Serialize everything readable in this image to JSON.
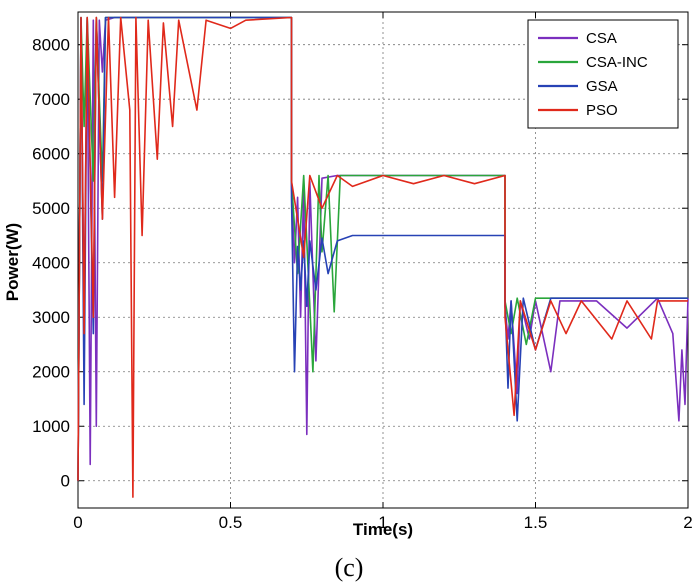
{
  "chart_data": {
    "type": "line",
    "title": "",
    "xlabel": "Time(s)",
    "ylabel": "Power(W)",
    "xlim": [
      0,
      2
    ],
    "ylim": [
      -500,
      8600
    ],
    "grid": true,
    "legend_position": "top-right",
    "x_ticks": [
      "0",
      "0.5",
      "1",
      "1.5",
      "2"
    ],
    "x_tick_values": [
      0,
      0.5,
      1,
      1.5,
      2
    ],
    "y_ticks": [
      "0",
      "1000",
      "2000",
      "3000",
      "4000",
      "5000",
      "6000",
      "7000",
      "8000"
    ],
    "y_tick_values": [
      0,
      1000,
      2000,
      3000,
      4000,
      5000,
      6000,
      7000,
      8000
    ],
    "series": [
      {
        "name": "CSA",
        "color": "#7b2fbe",
        "points": [
          [
            0,
            0
          ],
          [
            0.01,
            8400
          ],
          [
            0.02,
            3000
          ],
          [
            0.03,
            8450
          ],
          [
            0.04,
            300
          ],
          [
            0.05,
            8450
          ],
          [
            0.06,
            1000
          ],
          [
            0.07,
            8450
          ],
          [
            0.08,
            7500
          ],
          [
            0.09,
            8450
          ],
          [
            0.12,
            8500
          ],
          [
            0.7,
            8500
          ],
          [
            0.7,
            5400
          ],
          [
            0.71,
            4000
          ],
          [
            0.72,
            5200
          ],
          [
            0.73,
            3000
          ],
          [
            0.74,
            5400
          ],
          [
            0.75,
            850
          ],
          [
            0.76,
            5500
          ],
          [
            0.78,
            2200
          ],
          [
            0.8,
            5550
          ],
          [
            0.85,
            5600
          ],
          [
            1.4,
            5600
          ],
          [
            1.4,
            3200
          ],
          [
            1.41,
            2600
          ],
          [
            1.42,
            3300
          ],
          [
            1.44,
            1600
          ],
          [
            1.45,
            3300
          ],
          [
            1.48,
            2600
          ],
          [
            1.5,
            3300
          ],
          [
            1.55,
            2000
          ],
          [
            1.58,
            3300
          ],
          [
            1.7,
            3300
          ],
          [
            1.8,
            2800
          ],
          [
            1.9,
            3350
          ],
          [
            1.95,
            2700
          ],
          [
            1.97,
            1100
          ],
          [
            1.98,
            2400
          ],
          [
            1.99,
            1400
          ],
          [
            2,
            3350
          ]
        ]
      },
      {
        "name": "CSA-INC",
        "color": "#2aa63b",
        "points": [
          [
            0,
            0
          ],
          [
            0.01,
            8500
          ],
          [
            0.02,
            6500
          ],
          [
            0.03,
            8500
          ],
          [
            0.05,
            5500
          ],
          [
            0.06,
            8500
          ],
          [
            0.08,
            5500
          ],
          [
            0.09,
            8500
          ],
          [
            0.7,
            8500
          ],
          [
            0.7,
            5500
          ],
          [
            0.72,
            3800
          ],
          [
            0.74,
            5600
          ],
          [
            0.77,
            2000
          ],
          [
            0.79,
            5600
          ],
          [
            0.8,
            4200
          ],
          [
            0.82,
            5600
          ],
          [
            0.84,
            3100
          ],
          [
            0.86,
            5600
          ],
          [
            1.4,
            5600
          ],
          [
            1.4,
            3300
          ],
          [
            1.42,
            2700
          ],
          [
            1.44,
            3350
          ],
          [
            1.47,
            2500
          ],
          [
            1.5,
            3350
          ],
          [
            2,
            3350
          ]
        ]
      },
      {
        "name": "GSA",
        "color": "#2742b5",
        "points": [
          [
            0,
            0
          ],
          [
            0.01,
            8500
          ],
          [
            0.02,
            1400
          ],
          [
            0.03,
            8500
          ],
          [
            0.05,
            2700
          ],
          [
            0.06,
            8500
          ],
          [
            0.08,
            4800
          ],
          [
            0.09,
            8500
          ],
          [
            0.7,
            8500
          ],
          [
            0.7,
            5200
          ],
          [
            0.71,
            2000
          ],
          [
            0.72,
            4300
          ],
          [
            0.73,
            3500
          ],
          [
            0.74,
            4400
          ],
          [
            0.75,
            3200
          ],
          [
            0.76,
            4400
          ],
          [
            0.78,
            3500
          ],
          [
            0.8,
            4450
          ],
          [
            0.82,
            3800
          ],
          [
            0.85,
            4400
          ],
          [
            0.9,
            4500
          ],
          [
            1.4,
            4500
          ],
          [
            1.4,
            3300
          ],
          [
            1.41,
            1700
          ],
          [
            1.42,
            3300
          ],
          [
            1.44,
            1100
          ],
          [
            1.46,
            3350
          ],
          [
            1.5,
            2400
          ],
          [
            1.55,
            3350
          ],
          [
            2,
            3350
          ]
        ]
      },
      {
        "name": "PSO",
        "color": "#e0291b",
        "points": [
          [
            0,
            0
          ],
          [
            0.01,
            8500
          ],
          [
            0.02,
            2700
          ],
          [
            0.03,
            8500
          ],
          [
            0.05,
            3000
          ],
          [
            0.06,
            8500
          ],
          [
            0.08,
            4800
          ],
          [
            0.1,
            8500
          ],
          [
            0.12,
            5200
          ],
          [
            0.14,
            8500
          ],
          [
            0.17,
            6800
          ],
          [
            0.18,
            -300
          ],
          [
            0.19,
            8500
          ],
          [
            0.21,
            4500
          ],
          [
            0.23,
            8450
          ],
          [
            0.26,
            5900
          ],
          [
            0.28,
            8400
          ],
          [
            0.31,
            6500
          ],
          [
            0.33,
            8450
          ],
          [
            0.39,
            6800
          ],
          [
            0.42,
            8450
          ],
          [
            0.5,
            8300
          ],
          [
            0.55,
            8450
          ],
          [
            0.7,
            8500
          ],
          [
            0.7,
            5500
          ],
          [
            0.74,
            4100
          ],
          [
            0.76,
            5600
          ],
          [
            0.8,
            5000
          ],
          [
            0.85,
            5600
          ],
          [
            0.9,
            5400
          ],
          [
            1.0,
            5600
          ],
          [
            1.1,
            5450
          ],
          [
            1.2,
            5600
          ],
          [
            1.3,
            5450
          ],
          [
            1.4,
            5600
          ],
          [
            1.4,
            3000
          ],
          [
            1.43,
            1200
          ],
          [
            1.45,
            3300
          ],
          [
            1.5,
            2400
          ],
          [
            1.55,
            3300
          ],
          [
            1.6,
            2700
          ],
          [
            1.65,
            3300
          ],
          [
            1.75,
            2600
          ],
          [
            1.8,
            3300
          ],
          [
            1.88,
            2600
          ],
          [
            1.9,
            3300
          ],
          [
            2,
            3300
          ]
        ]
      }
    ]
  },
  "caption": "(c)"
}
